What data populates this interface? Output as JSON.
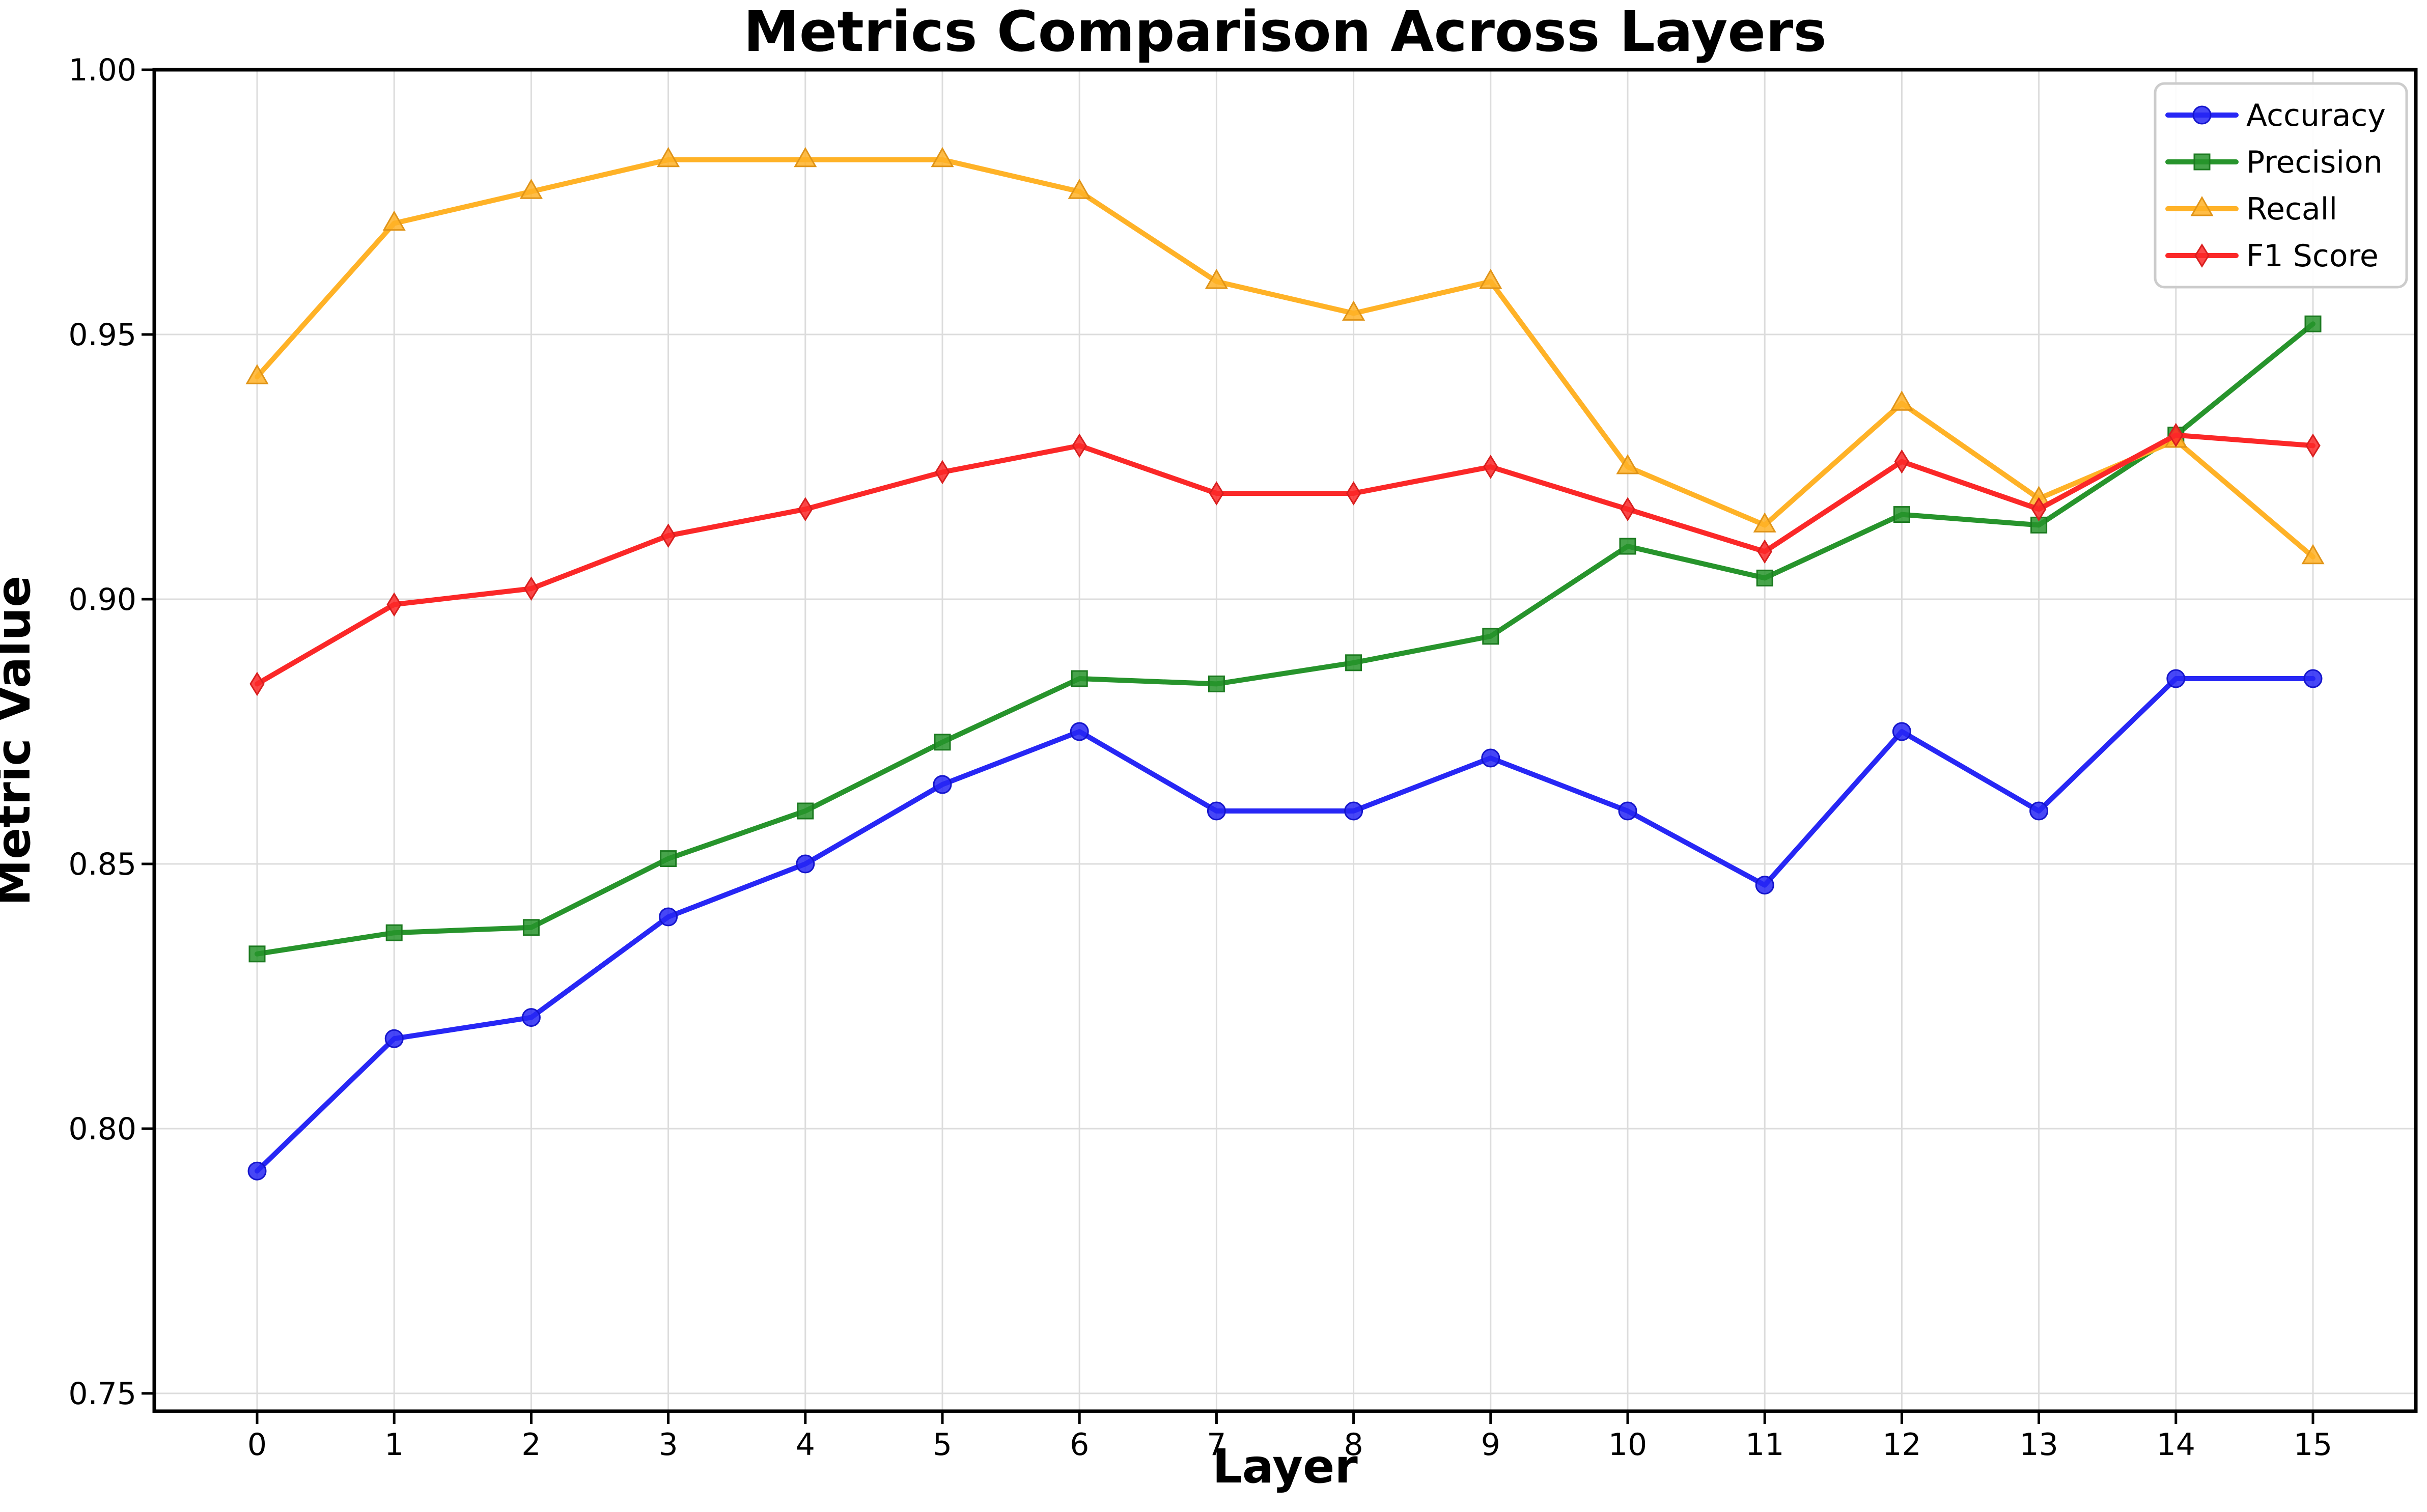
{
  "title": "Metrics Comparison Across Layers",
  "axes": {
    "xlabel": "Layer",
    "ylabel": "Metric Value",
    "x_tick_labels": [
      "0",
      "1",
      "2",
      "3",
      "4",
      "5",
      "6",
      "7",
      "8",
      "9",
      "10",
      "11",
      "12",
      "13",
      "14",
      "15"
    ],
    "y_tick_labels": [
      "0.75",
      "0.80",
      "0.85",
      "0.90",
      "0.95",
      "1.00"
    ],
    "y_tick_values": [
      0.75,
      0.8,
      0.85,
      0.9,
      0.95,
      1.0
    ]
  },
  "legend": {
    "position": "upper right",
    "entries": [
      {
        "label": "Accuracy",
        "marker": "circle",
        "color": "#2727f5"
      },
      {
        "label": "Precision",
        "marker": "square",
        "color": "#27942c"
      },
      {
        "label": "Recall",
        "marker": "triangle",
        "color": "#ffb227"
      },
      {
        "label": "F1 Score",
        "marker": "diamond",
        "color": "#fb2828"
      }
    ]
  },
  "colors": {
    "accuracy": "#2727f5",
    "precision": "#27942c",
    "recall": "#ffb227",
    "f1": "#fb2828",
    "grid": "#dcdcdc",
    "spine": "#000000",
    "legend_border": "#cccccc"
  },
  "chart_data": {
    "type": "line",
    "title": "Metrics Comparison Across Layers",
    "xlabel": "Layer",
    "ylabel": "Metric Value",
    "x": [
      0,
      1,
      2,
      3,
      4,
      5,
      6,
      7,
      8,
      9,
      10,
      11,
      12,
      13,
      14,
      15
    ],
    "ylim": [
      0.747,
      1.0
    ],
    "yticks": [
      0.75,
      0.8,
      0.85,
      0.9,
      0.95,
      1.0
    ],
    "grid": true,
    "legend_position": "upper right",
    "series": [
      {
        "name": "Accuracy",
        "marker": "circle",
        "color": "#2727f5",
        "edge": "#1515cc",
        "values": [
          0.792,
          0.817,
          0.821,
          0.84,
          0.85,
          0.865,
          0.875,
          0.86,
          0.86,
          0.87,
          0.86,
          0.846,
          0.875,
          0.86,
          0.885,
          0.885
        ]
      },
      {
        "name": "Precision",
        "marker": "square",
        "color": "#27942c",
        "edge": "#1c7a20",
        "values": [
          0.833,
          0.837,
          0.838,
          0.851,
          0.86,
          0.873,
          0.885,
          0.884,
          0.888,
          0.893,
          0.91,
          0.904,
          0.916,
          0.914,
          0.931,
          0.952
        ]
      },
      {
        "name": "Recall",
        "marker": "triangle",
        "color": "#ffb227",
        "edge": "#e09418",
        "values": [
          0.942,
          0.971,
          0.977,
          0.983,
          0.983,
          0.983,
          0.977,
          0.96,
          0.954,
          0.96,
          0.925,
          0.914,
          0.937,
          0.919,
          0.93,
          0.908
        ]
      },
      {
        "name": "F1 Score",
        "marker": "diamond",
        "color": "#fb2828",
        "edge": "#d81f1f",
        "values": [
          0.884,
          0.899,
          0.902,
          0.912,
          0.917,
          0.924,
          0.929,
          0.92,
          0.92,
          0.925,
          0.917,
          0.909,
          0.926,
          0.917,
          0.931,
          0.929
        ]
      }
    ]
  }
}
